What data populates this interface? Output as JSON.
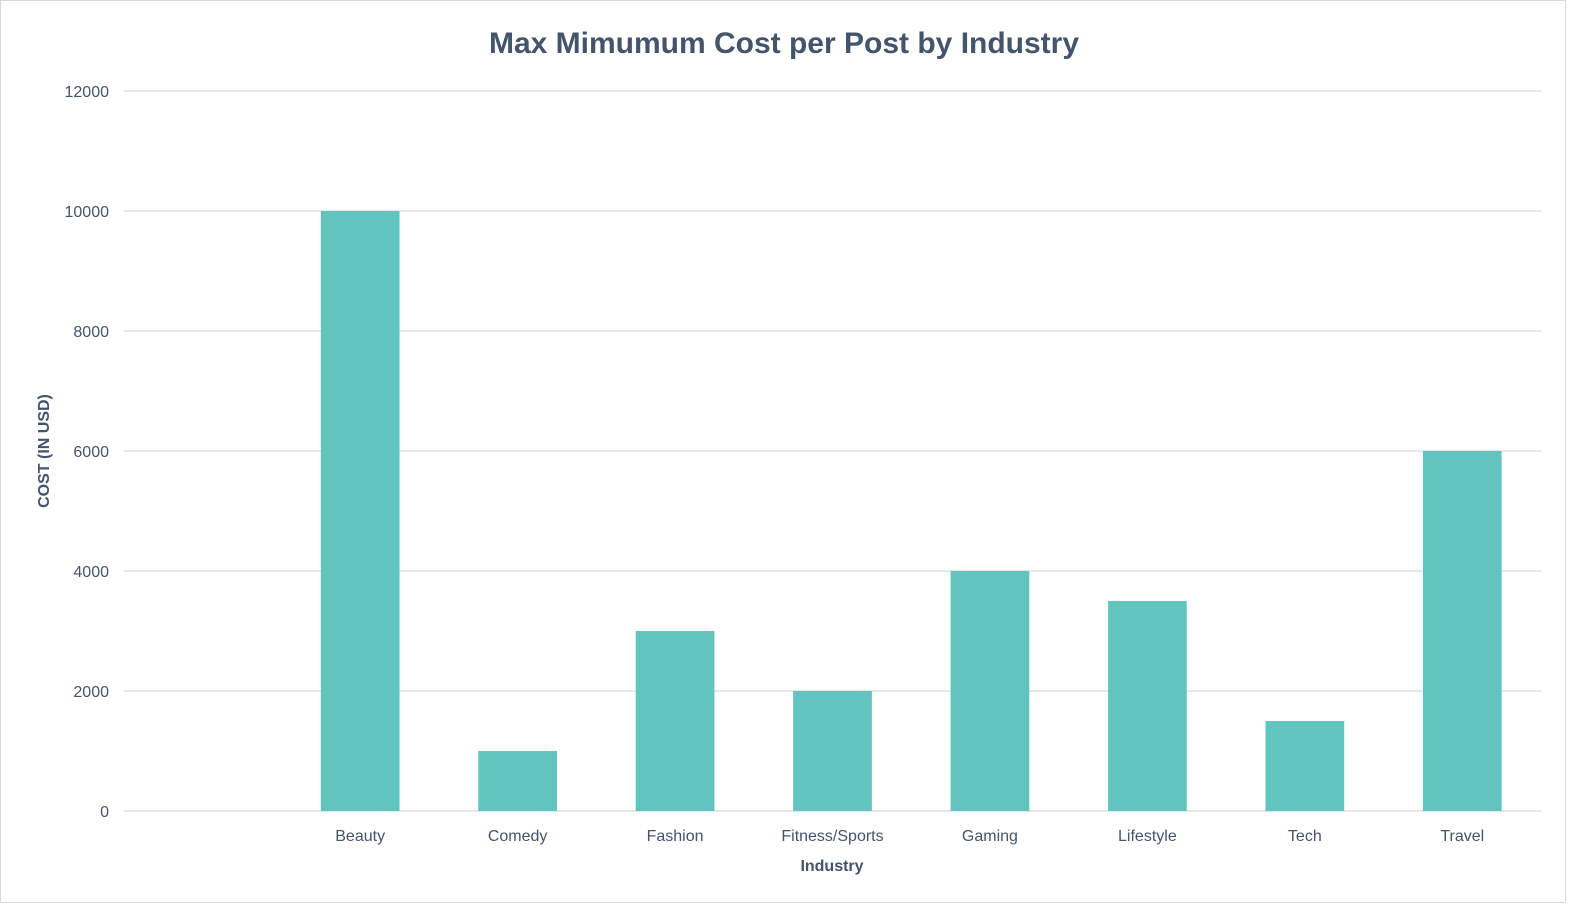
{
  "chart_data": {
    "type": "bar",
    "title": "Max Mimumum Cost per Post by Industry",
    "xlabel": "Industry",
    "ylabel": "COST (IN USD)",
    "categories": [
      "",
      "Beauty",
      "Comedy",
      "Fashion",
      "Fitness/Sports",
      "Gaming",
      "Lifestyle",
      "Tech",
      "Travel"
    ],
    "values": [
      0,
      10000,
      1000,
      3000,
      2000,
      4000,
      3500,
      1500,
      6000
    ],
    "ylim": [
      0,
      12000
    ],
    "yticks": [
      "0",
      "2000",
      "4000",
      "6000",
      "8000",
      "10000",
      "12000"
    ],
    "grid": true,
    "legend": "none",
    "colors": {
      "bar": "#62c4bf",
      "text": "#44546a",
      "grid": "#d9d9d9"
    }
  }
}
